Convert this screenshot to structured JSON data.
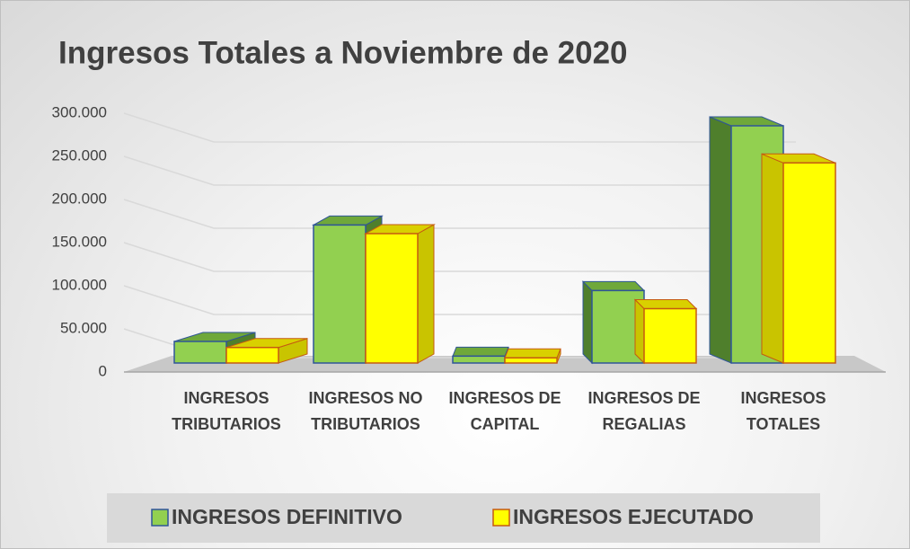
{
  "chart_data": {
    "type": "bar3d",
    "title": "Ingresos Totales a Noviembre de 2020",
    "categories": [
      "INGRESOS TRIBUTARIOS",
      "INGRESOS NO TRIBUTARIOS",
      "INGRESOS DE CAPITAL",
      "INGRESOS DE REGALIAS",
      "INGRESOS TOTALES"
    ],
    "series": [
      {
        "name": "INGRESOS DEFINITIVO",
        "color": "#92d050",
        "values": [
          25000,
          160000,
          8000,
          84000,
          275000
        ]
      },
      {
        "name": "INGRESOS EJECUTADO",
        "color": "#ffff00",
        "values": [
          18000,
          150000,
          6000,
          63000,
          232000
        ]
      }
    ],
    "ylim": [
      0,
      300000
    ],
    "yticks": [
      0,
      {
        "value": 50000,
        "label": "50.000"
      },
      {
        "value": 100000,
        "label": "100.000"
      },
      {
        "value": 150000,
        "label": "150.000"
      },
      {
        "value": 200000,
        "label": "200.000"
      },
      {
        "value": 250000,
        "label": "250.000"
      },
      {
        "value": 300000,
        "label": "300.000"
      }
    ],
    "grid": true,
    "legend": "bottom"
  }
}
